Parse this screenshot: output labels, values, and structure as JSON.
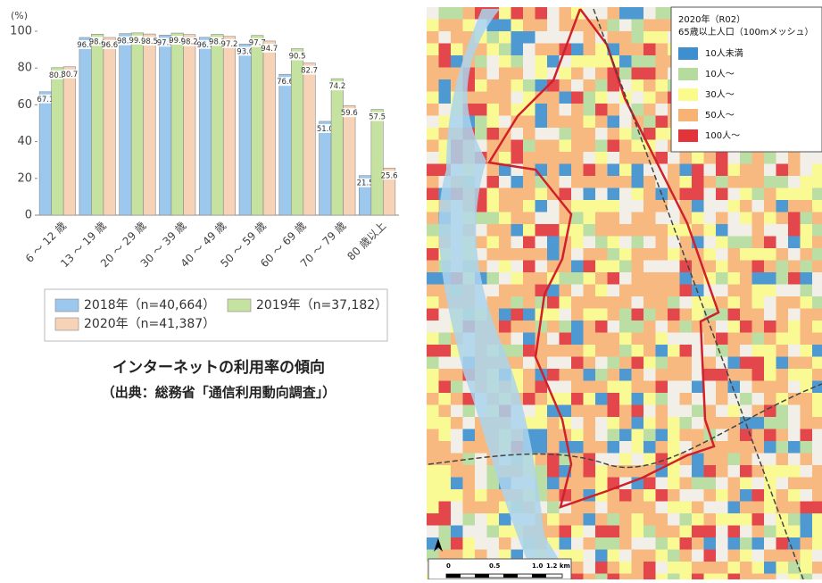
{
  "chart_data": {
    "type": "bar",
    "y_unit": "(%)",
    "categories": [
      "6 ～ 12 歳",
      "13 ～ 19 歳",
      "20 ～ 29 歳",
      "30 ～ 39 歳",
      "40 ～ 49 歳",
      "50 ～ 59 歳",
      "60 ～ 69 歳",
      "70 ～ 79 歳",
      "80 歳以上"
    ],
    "series": [
      {
        "name": "2018年（n=40,664）",
        "color": "#9cc8ee",
        "values": [
          67.1,
          96.6,
          98.7,
          97.9,
          96.7,
          93.0,
          76.6,
          51.0,
          21.5
        ],
        "value_labels": [
          "67.1",
          "96.6",
          "98.7",
          "97.9",
          "96.7",
          "93.0",
          "76.6",
          "51.0",
          "21.5"
        ]
      },
      {
        "name": "2019年（n=37,182）",
        "color": "#c6e2a0",
        "values": [
          80.2,
          98.4,
          99.1,
          99.0,
          98.3,
          97.7,
          90.5,
          74.2,
          57.5
        ],
        "value_labels": [
          "80.2",
          "98.4",
          "99.1",
          "99.0",
          "98.3",
          "97.7",
          "90.5",
          "74.2",
          "57.5"
        ]
      },
      {
        "name": "2020年（n=41,387）",
        "color": "#f6d2b6",
        "values": [
          80.7,
          96.6,
          98.5,
          98.2,
          97.2,
          94.7,
          82.7,
          59.6,
          25.6
        ],
        "value_labels": [
          "80.7",
          "96.6",
          "98.5",
          "98.2",
          "97.2",
          "94.7",
          "82.7",
          "59.6",
          "25.6"
        ]
      }
    ],
    "ylim": [
      0,
      100
    ],
    "yticks": [
      0,
      20,
      40,
      60,
      80,
      100
    ],
    "grid": false
  },
  "caption": {
    "title": "インターネットの利用率の傾向",
    "source": "（出典：総務省「通信利用動向調査」）"
  },
  "map": {
    "legend_title": [
      "2020年（R02）",
      "65歳以上人口（100mメッシュ）"
    ],
    "legend": [
      {
        "label": "10人未満",
        "color": "#3d8fd0"
      },
      {
        "label": "10人～",
        "color": "#b5dc9c"
      },
      {
        "label": "30人～",
        "color": "#fbfb8c"
      },
      {
        "label": "50人～",
        "color": "#f7b274"
      },
      {
        "label": "100人～",
        "color": "#e2343a"
      }
    ],
    "scale": [
      "0",
      "0.5",
      "1.0",
      "1.2 km"
    ]
  }
}
